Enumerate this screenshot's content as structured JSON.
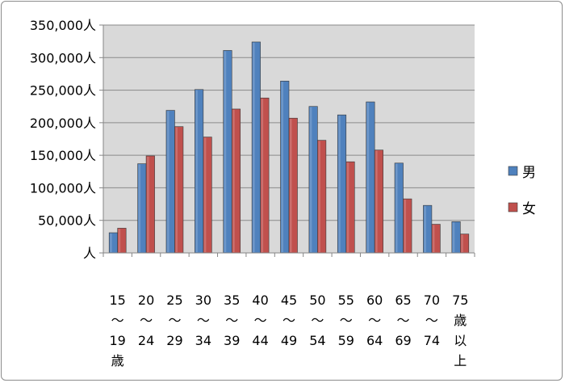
{
  "chart_data": {
    "type": "bar",
    "title": "",
    "xlabel": "",
    "ylabel": "",
    "ylim": [
      0,
      350000
    ],
    "y_ticks": [
      {
        "value": 0,
        "label": "人"
      },
      {
        "value": 50000,
        "label": "50,000人"
      },
      {
        "value": 100000,
        "label": "100,000人"
      },
      {
        "value": 150000,
        "label": "150,000人"
      },
      {
        "value": 200000,
        "label": "200,000人"
      },
      {
        "value": 250000,
        "label": "250,000人"
      },
      {
        "value": 300000,
        "label": "300,000人"
      },
      {
        "value": 350000,
        "label": "350,000人"
      }
    ],
    "categories": [
      [
        "15",
        "〜",
        "19",
        "歳"
      ],
      [
        "20",
        "〜",
        "24"
      ],
      [
        "25",
        "〜",
        "29"
      ],
      [
        "30",
        "〜",
        "34"
      ],
      [
        "35",
        "〜",
        "39"
      ],
      [
        "40",
        "〜",
        "44"
      ],
      [
        "45",
        "〜",
        "49"
      ],
      [
        "50",
        "〜",
        "54"
      ],
      [
        "55",
        "〜",
        "59"
      ],
      [
        "60",
        "〜",
        "64"
      ],
      [
        "65",
        "〜",
        "69"
      ],
      [
        "70",
        "〜",
        "74"
      ],
      [
        "75",
        "歳",
        "以",
        "上"
      ]
    ],
    "series": [
      {
        "name": "男",
        "color": "#4f81bd",
        "values": [
          31000,
          137000,
          219000,
          251000,
          311000,
          324000,
          264000,
          225000,
          212000,
          232000,
          138000,
          73000,
          48000
        ]
      },
      {
        "name": "女",
        "color": "#c0504d",
        "values": [
          38000,
          149000,
          194000,
          178000,
          221000,
          238000,
          207000,
          173000,
          140000,
          158000,
          83000,
          44000,
          29000
        ]
      }
    ],
    "grid": true,
    "plot_background": "#d9d9d9",
    "legend_position": "right"
  }
}
